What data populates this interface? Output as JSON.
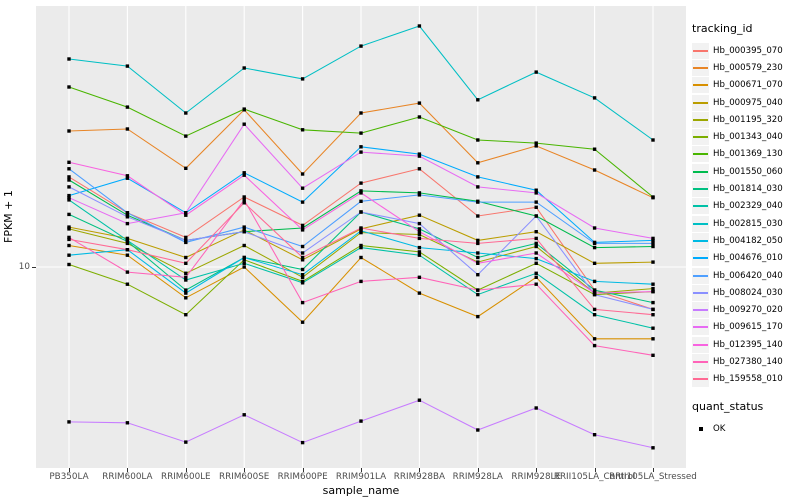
{
  "chart_data": {
    "type": "line",
    "title": "",
    "xlabel": "sample_name",
    "ylabel": "FPKM + 1",
    "y_scale": "log10",
    "y_tick_labels": [
      "10"
    ],
    "ylim": [
      2.0,
      85
    ],
    "grid": "major",
    "legend_position": "right",
    "point_marker": "filled-square-black",
    "categories": [
      "PB350LA",
      "RRIM600LA",
      "RRIM600LE",
      "RRIM600SE",
      "RRIM600PE",
      "RRIM901LA",
      "RRIM928BA",
      "RRIM928LA",
      "RRIM928LE",
      "RRII105LA_Control",
      "RRII105LA_Stressed"
    ],
    "series": [
      {
        "name": "Hb_000395_070",
        "color": "#F8766D",
        "values": [
          20.7,
          15.5,
          12.7,
          17.6,
          14.0,
          19.7,
          22.1,
          15.1,
          16.2,
          8.3,
          7.1
        ]
      },
      {
        "name": "Hb_000579_230",
        "color": "#E88526",
        "values": [
          30.0,
          30.5,
          22.2,
          35.6,
          21.2,
          34.7,
          37.6,
          23.2,
          26.6,
          21.9,
          17.5
        ]
      },
      {
        "name": "Hb_000671_070",
        "color": "#D89000",
        "values": [
          11.9,
          11.0,
          7.8,
          10.0,
          6.4,
          10.8,
          8.1,
          6.7,
          9.2,
          5.6,
          5.6
        ]
      },
      {
        "name": "Hb_000975_040",
        "color": "#BA9D00",
        "values": [
          13.8,
          12.6,
          10.8,
          13.5,
          10.6,
          13.6,
          15.2,
          12.4,
          13.3,
          10.3,
          10.4
        ]
      },
      {
        "name": "Hb_001195_320",
        "color": "#9CA700",
        "values": [
          13.6,
          12.1,
          9.5,
          11.9,
          9.2,
          13.2,
          13.0,
          10.4,
          11.8,
          8.1,
          8.4
        ]
      },
      {
        "name": "Hb_001343_040",
        "color": "#7CAE00",
        "values": [
          10.2,
          8.7,
          6.8,
          10.6,
          8.9,
          11.9,
          11.3,
          8.3,
          10.3,
          8.0,
          8.2
        ]
      },
      {
        "name": "Hb_001369_130",
        "color": "#49B500",
        "values": [
          42.8,
          36.4,
          28.8,
          35.8,
          30.3,
          29.5,
          33.6,
          27.9,
          27.2,
          25.9,
          17.6
        ]
      },
      {
        "name": "Hb_001550_060",
        "color": "#00BB4E",
        "values": [
          20.2,
          15.2,
          12.4,
          13.3,
          13.7,
          18.5,
          18.2,
          17.0,
          15.1,
          11.7,
          11.8
        ]
      },
      {
        "name": "Hb_001814_030",
        "color": "#00C081",
        "values": [
          15.3,
          12.3,
          8.3,
          10.8,
          9.8,
          15.6,
          13.6,
          10.8,
          12.1,
          8.3,
          7.5
        ]
      },
      {
        "name": "Hb_002329_040",
        "color": "#00C1A7",
        "values": [
          17.2,
          12.4,
          9.0,
          10.3,
          8.8,
          11.7,
          11.0,
          8.0,
          9.5,
          6.8,
          6.1
        ]
      },
      {
        "name": "Hb_002815_030",
        "color": "#00BFC4",
        "values": [
          53.7,
          50.7,
          34.7,
          49.9,
          45.7,
          59.6,
          70.1,
          38.6,
          48.3,
          39.2,
          27.9
        ]
      },
      {
        "name": "Hb_004182_050",
        "color": "#00BAE3",
        "values": [
          11.0,
          11.5,
          8.1,
          10.8,
          9.4,
          13.4,
          11.7,
          11.2,
          10.7,
          8.9,
          8.7
        ]
      },
      {
        "name": "Hb_004676_010",
        "color": "#00ABFD",
        "values": [
          17.8,
          20.5,
          15.5,
          21.4,
          16.9,
          26.4,
          24.9,
          20.7,
          18.6,
          12.2,
          12.4
        ]
      },
      {
        "name": "Hb_006420_040",
        "color": "#4E9FFF",
        "values": [
          22.1,
          15.5,
          12.2,
          13.8,
          11.8,
          17.0,
          17.9,
          16.9,
          16.9,
          12.1,
          12.1
        ]
      },
      {
        "name": "Hb_008024_030",
        "color": "#8A90FF",
        "values": [
          19.1,
          15.0,
          12.4,
          13.3,
          11.2,
          15.6,
          14.2,
          9.4,
          15.1,
          8.0,
          7.1
        ]
      },
      {
        "name": "Hb_009270_020",
        "color": "#C77CFF",
        "values": [
          2.86,
          2.84,
          2.43,
          3.03,
          2.42,
          2.88,
          3.41,
          2.68,
          3.2,
          2.58,
          2.32
        ]
      },
      {
        "name": "Hb_009615_170",
        "color": "#E76BF3",
        "values": [
          17.5,
          14.2,
          15.5,
          31.7,
          18.9,
          25.3,
          24.5,
          19.1,
          18.2,
          13.7,
          12.6
        ]
      },
      {
        "name": "Hb_012395_140",
        "color": "#F863E0",
        "values": [
          23.3,
          20.9,
          15.2,
          21.0,
          13.5,
          18.2,
          13.3,
          10.3,
          11.2,
          8.1,
          8.2
        ]
      },
      {
        "name": "Hb_027380_140",
        "color": "#FF63B8",
        "values": [
          12.7,
          9.6,
          9.2,
          17.2,
          7.5,
          8.9,
          9.2,
          8.3,
          8.7,
          5.3,
          4.9
        ]
      },
      {
        "name": "Hb_159558_010",
        "color": "#FF6A94",
        "values": [
          12.5,
          11.5,
          10.3,
          16.8,
          10.8,
          13.7,
          12.6,
          12.1,
          12.6,
          7.1,
          6.8
        ]
      }
    ]
  },
  "legend": {
    "tracking_title": "tracking_id",
    "quant_title": "quant_status",
    "quant_items": [
      {
        "label": "OK",
        "marker": "black-square"
      }
    ]
  },
  "style_colors": {
    "panel_background": "#EBEBEB",
    "gridline": "#FFFFFF",
    "tick_text": "#4D4D4D",
    "point": "#000000"
  }
}
